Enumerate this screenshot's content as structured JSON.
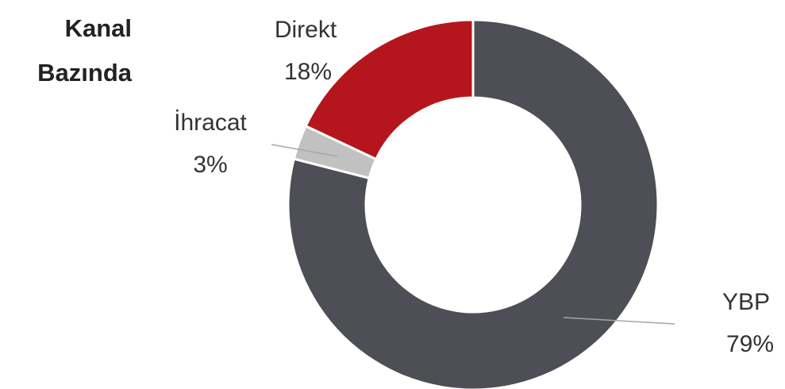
{
  "chart_data": {
    "type": "donut",
    "title": "Kanal Bazında",
    "categories": [
      "YBP",
      "İhracat",
      "Direkt"
    ],
    "values": [
      79,
      3,
      18
    ],
    "value_labels": [
      "79%",
      "3%",
      "18%"
    ],
    "colors": [
      "#4e4e56",
      "#c1c1c1",
      "#b5161e"
    ]
  }
}
